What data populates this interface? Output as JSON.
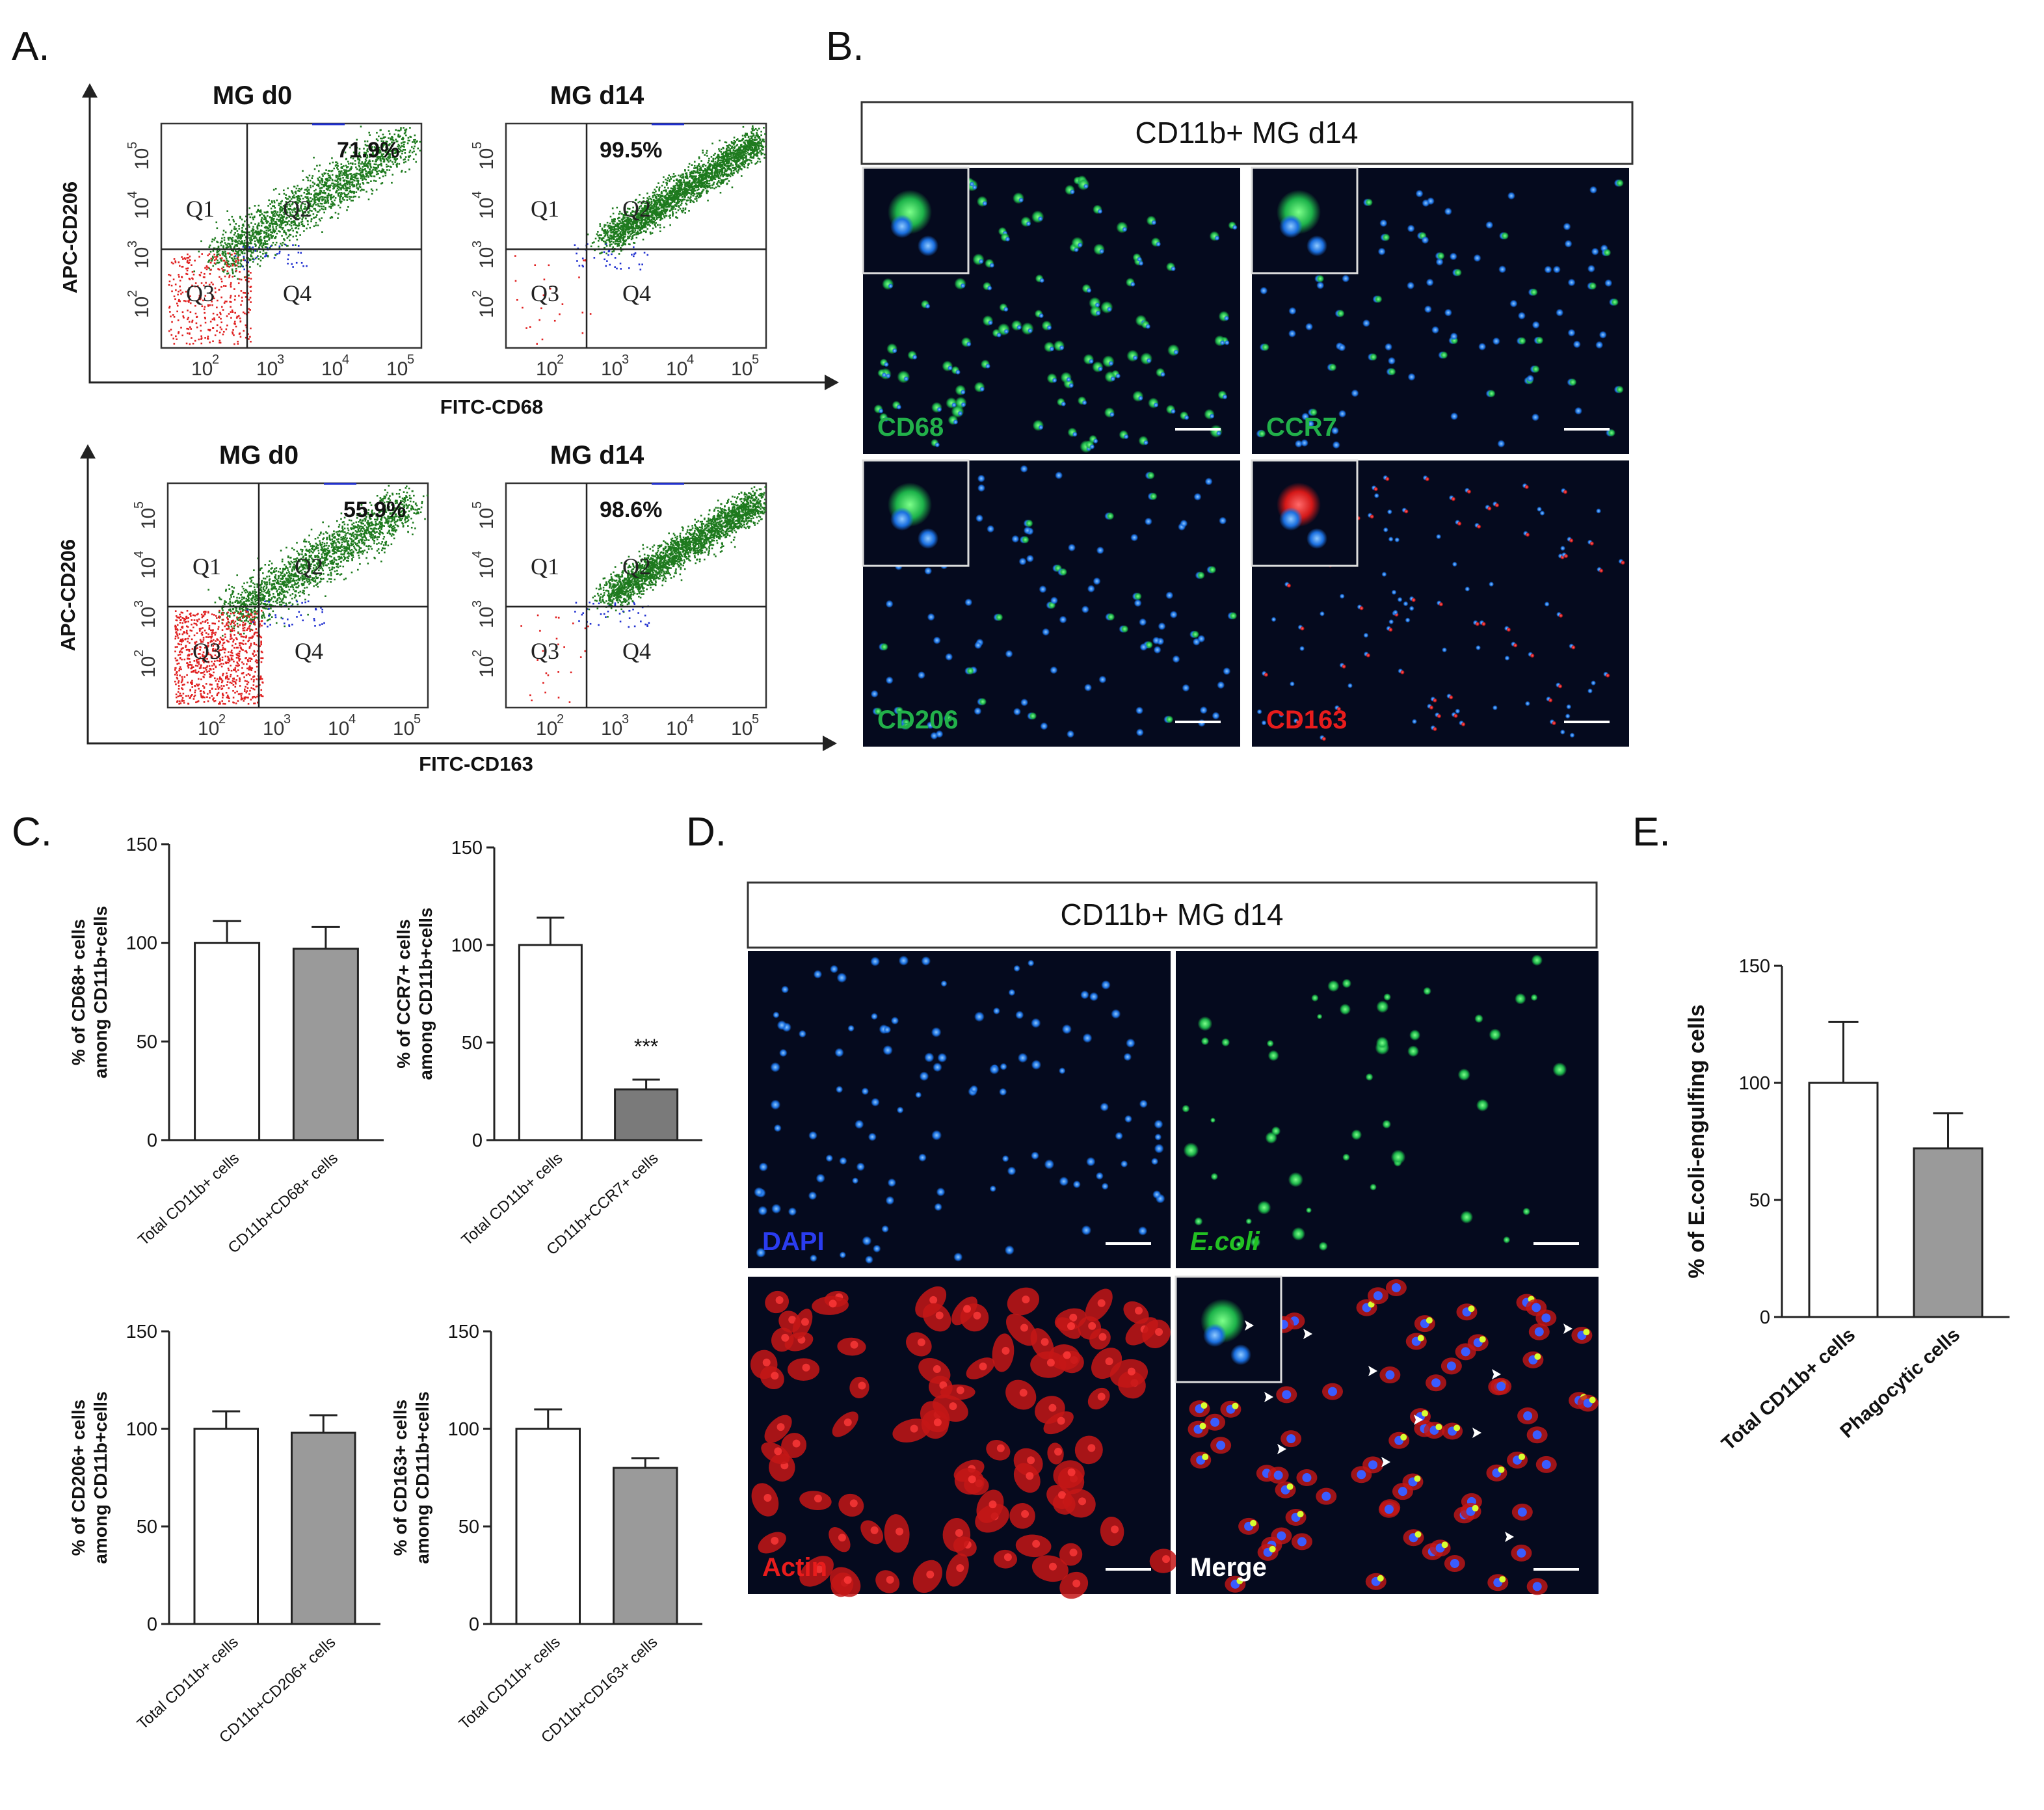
{
  "panel_labels": {
    "A": "A.",
    "B": "B.",
    "C": "C.",
    "D": "D.",
    "E": "E."
  },
  "flow": {
    "rows": [
      {
        "y_axis_label": "APC-CD206",
        "x_axis_label": "FITC-CD68",
        "plots": [
          {
            "title": "MG d0",
            "q2_percent": "71.9%",
            "quadrants": [
              "Q1",
              "Q2",
              "Q3",
              "Q4"
            ],
            "mostly_positive": false
          },
          {
            "title": "MG d14",
            "q2_percent": "99.5%",
            "quadrants": [
              "Q1",
              "Q2",
              "Q3",
              "Q4"
            ],
            "mostly_positive": true
          }
        ]
      },
      {
        "y_axis_label": "APC-CD206",
        "x_axis_label": "FITC-CD163",
        "plots": [
          {
            "title": "MG d0",
            "q2_percent": "55.9%",
            "quadrants": [
              "Q1",
              "Q2",
              "Q3",
              "Q4"
            ],
            "mostly_positive": false
          },
          {
            "title": "MG d14",
            "q2_percent": "98.6%",
            "quadrants": [
              "Q1",
              "Q2",
              "Q3",
              "Q4"
            ],
            "mostly_positive": true
          }
        ]
      }
    ],
    "ticks": [
      "10",
      "10",
      "10",
      "10"
    ],
    "tick_exponents": [
      "2",
      "3",
      "4",
      "5"
    ],
    "colors": {
      "positive": "#1e7a1e",
      "negative": "#e02020",
      "other": "#2030d0"
    }
  },
  "panel_b": {
    "header": "CD11b+ MG d14",
    "images": [
      {
        "label": "CD68",
        "color": "#22b04a"
      },
      {
        "label": "CCR7",
        "color": "#22b04a"
      },
      {
        "label": "CD206",
        "color": "#22b04a"
      },
      {
        "label": "CD163",
        "color": "#e81c1c"
      }
    ]
  },
  "panel_d": {
    "header": "CD11b+ MG d14",
    "images": [
      {
        "label": "DAPI",
        "color": "#2a3cf0"
      },
      {
        "label": "E.coli",
        "color": "#22c022"
      },
      {
        "label": "Actin",
        "color": "#e81c1c"
      },
      {
        "label": "Merge",
        "color": "#ffffff"
      }
    ]
  },
  "chart_data": [
    {
      "type": "bar",
      "panel": "C",
      "ylabel": "% of CD68+ cells among CD11b+cells",
      "categories": [
        "Total CD11b+ cells",
        "CD11b+CD68+ cells"
      ],
      "values": [
        100,
        97
      ],
      "errors": [
        11,
        11
      ],
      "bar_colors": [
        "#ffffff",
        "#9a9a9a"
      ],
      "ylim": [
        0,
        150
      ],
      "yticks": [
        "0",
        "50",
        "100",
        "150"
      ],
      "significance": ""
    },
    {
      "type": "bar",
      "panel": "C",
      "ylabel": "% of CCR7+ cells among CD11b+cells",
      "categories": [
        "Total CD11b+ cells",
        "CD11b+CCR7+ cells"
      ],
      "values": [
        100,
        26
      ],
      "errors": [
        14,
        5
      ],
      "bar_colors": [
        "#ffffff",
        "#7a7a7a"
      ],
      "ylim": [
        0,
        150
      ],
      "yticks": [
        "0",
        "50",
        "100",
        "150"
      ],
      "significance": "***"
    },
    {
      "type": "bar",
      "panel": "C",
      "ylabel": "% of CD206+ cells among CD11b+cells",
      "categories": [
        "Total CD11b+ cells",
        "CD11b+CD206+ cells"
      ],
      "values": [
        100,
        98
      ],
      "errors": [
        9,
        9
      ],
      "bar_colors": [
        "#ffffff",
        "#9a9a9a"
      ],
      "ylim": [
        0,
        150
      ],
      "yticks": [
        "0",
        "50",
        "100",
        "150"
      ],
      "significance": ""
    },
    {
      "type": "bar",
      "panel": "C",
      "ylabel": "% of CD163+ cells among CD11b+cells",
      "categories": [
        "Total CD11b+ cells",
        "CD11b+CD163+ cells"
      ],
      "values": [
        100,
        80
      ],
      "errors": [
        10,
        5
      ],
      "bar_colors": [
        "#ffffff",
        "#9a9a9a"
      ],
      "ylim": [
        0,
        150
      ],
      "yticks": [
        "0",
        "50",
        "100",
        "150"
      ],
      "significance": ""
    },
    {
      "type": "bar",
      "panel": "E",
      "ylabel": "% of E.coli-engulfing cells",
      "categories": [
        "Total CD11b+ cells",
        "Phagocytic cells"
      ],
      "values": [
        100,
        72
      ],
      "errors": [
        26,
        15
      ],
      "bar_colors": [
        "#ffffff",
        "#9a9a9a"
      ],
      "ylim": [
        0,
        150
      ],
      "yticks": [
        "0",
        "50",
        "100",
        "150"
      ],
      "significance": ""
    }
  ]
}
